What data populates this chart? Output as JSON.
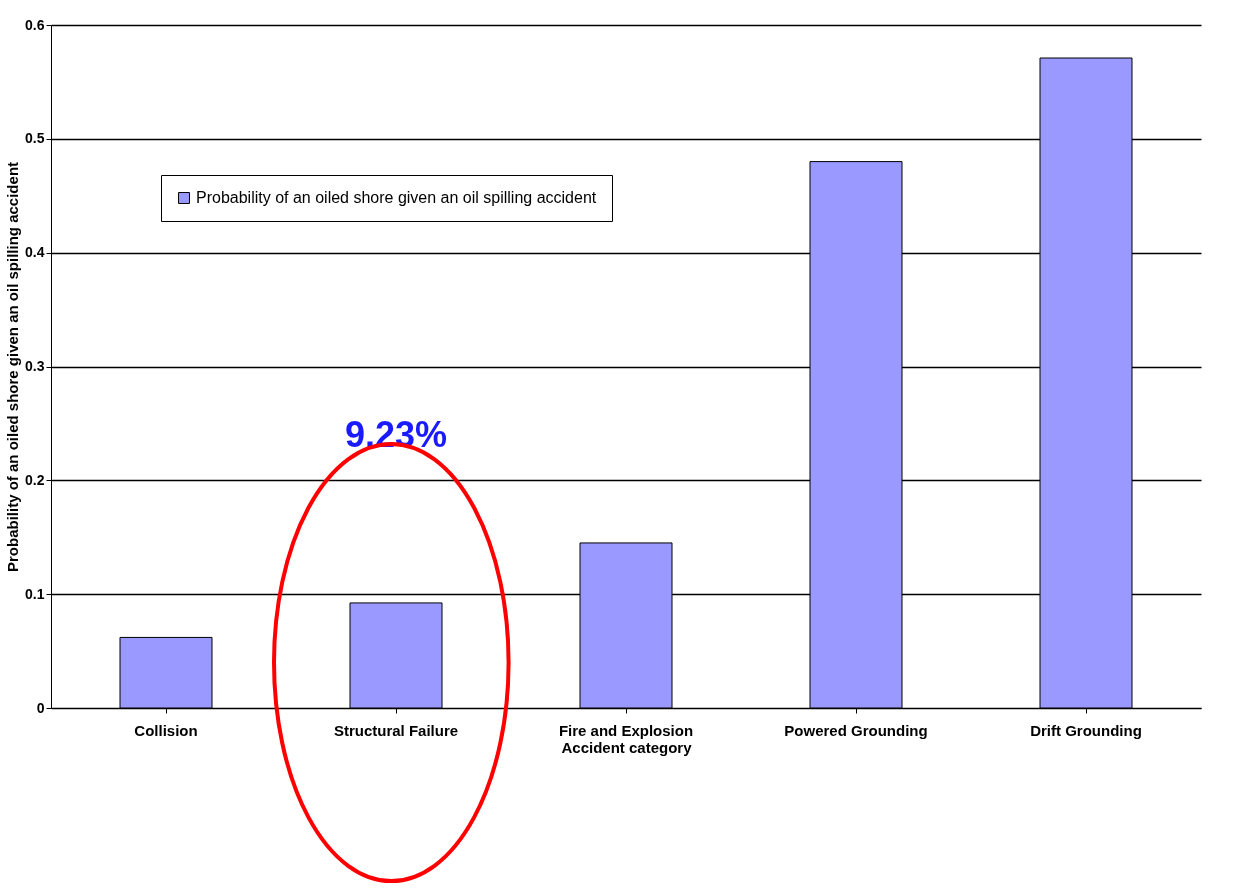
{
  "chart_data": {
    "type": "bar",
    "xlabel": "Accident category",
    "ylabel": "Probability of an oiled shore given an oil spilling accident",
    "categories": [
      "Collision",
      "Structural Failure",
      "Fire and Explosion",
      "Powered Grounding",
      "Drift Grounding"
    ],
    "series": [
      {
        "name": "Probability of an oiled shore given an oil spilling accident",
        "color": "#9999ff",
        "values": [
          0.062,
          0.0923,
          0.145,
          0.48,
          0.571
        ]
      }
    ],
    "ylim": [
      0,
      0.6
    ],
    "yticks": [
      0,
      0.1,
      0.2,
      0.3,
      0.4,
      0.5,
      0.6
    ],
    "grid": "y",
    "legend": "top left",
    "annotations": [
      "9.23%"
    ]
  }
}
